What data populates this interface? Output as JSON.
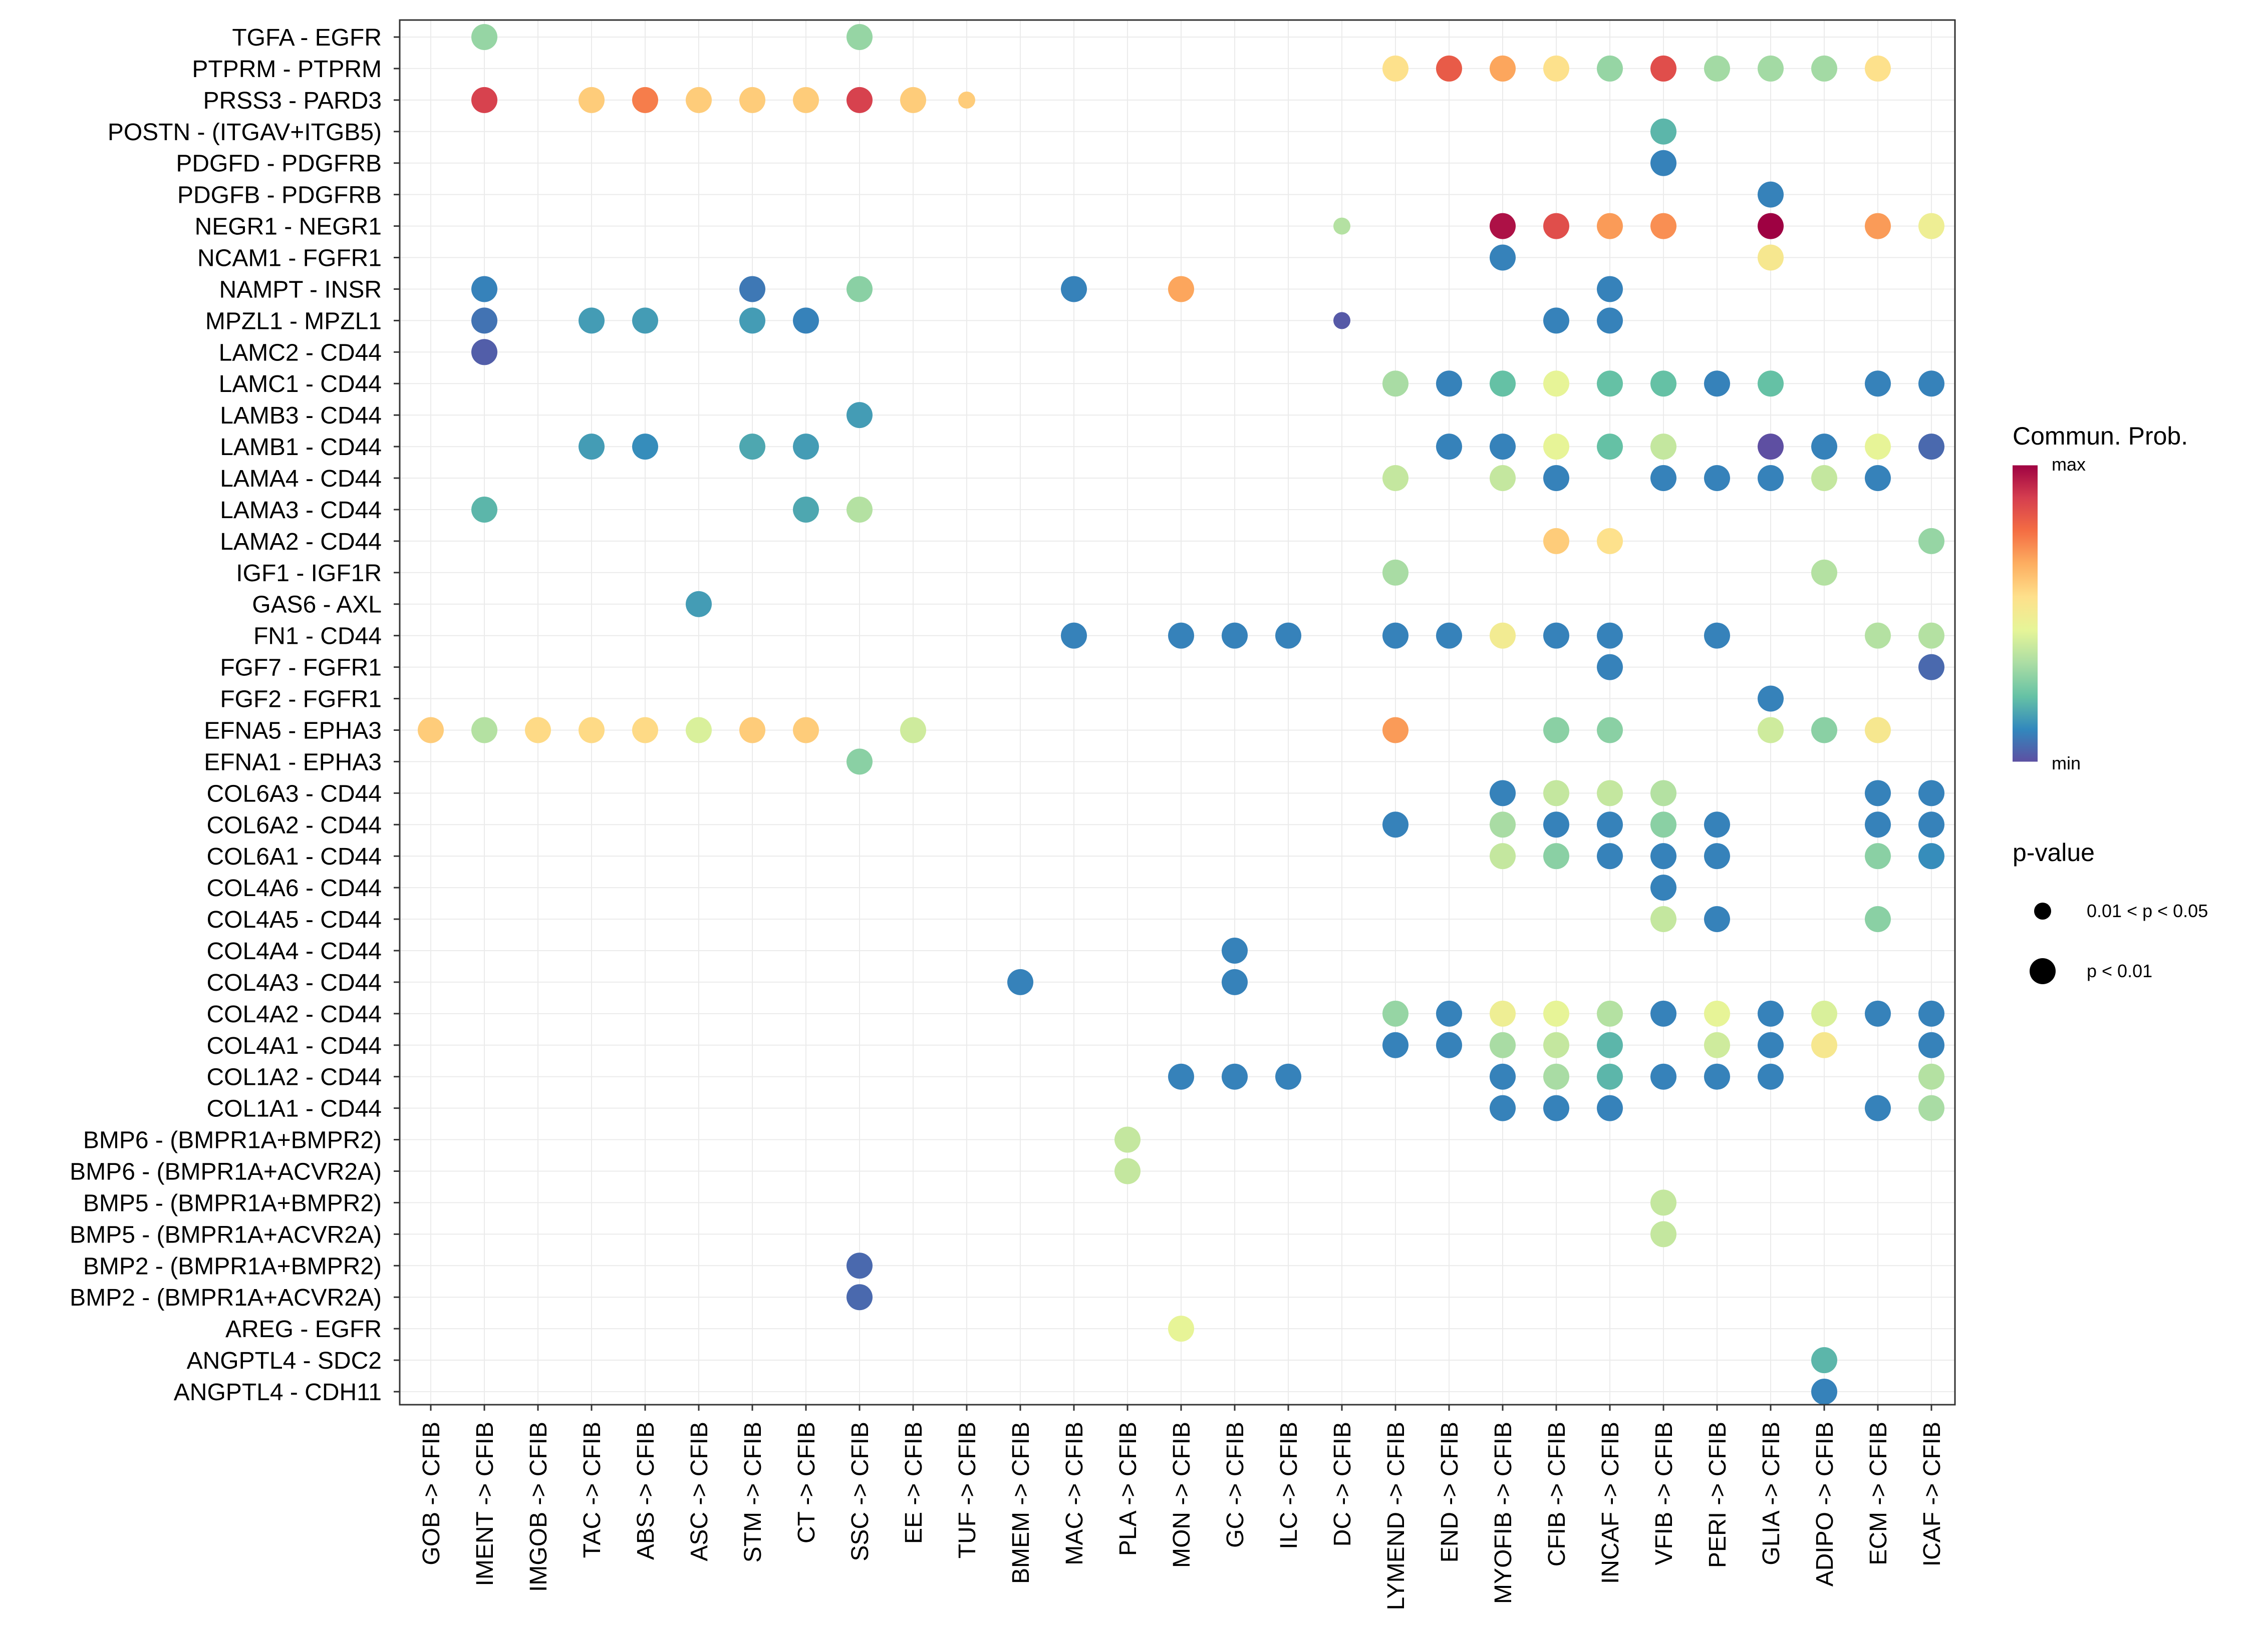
{
  "chart_data": {
    "type": "dot",
    "title": "",
    "xlabel": "",
    "ylabel": "",
    "x_categories": [
      "GOB -> CFIB",
      "IMENT -> CFIB",
      "IMGOB -> CFIB",
      "TAC -> CFIB",
      "ABS -> CFIB",
      "ASC -> CFIB",
      "STM -> CFIB",
      "CT -> CFIB",
      "SSC -> CFIB",
      "EE -> CFIB",
      "TUF -> CFIB",
      "BMEM -> CFIB",
      "MAC -> CFIB",
      "PLA -> CFIB",
      "MON -> CFIB",
      "GC -> CFIB",
      "ILC -> CFIB",
      "DC -> CFIB",
      "LYMEND -> CFIB",
      "END -> CFIB",
      "MYOFIB -> CFIB",
      "CFIB -> CFIB",
      "INCAF -> CFIB",
      "VFIB -> CFIB",
      "PERI -> CFIB",
      "GLIA -> CFIB",
      "ADIPO -> CFIB",
      "ECM -> CFIB",
      "ICAF -> CFIB"
    ],
    "y_categories": [
      "TGFA - EGFR",
      "PTPRM - PTPRM",
      "PRSS3 - PARD3",
      "POSTN - (ITGAV+ITGB5)",
      "PDGFD - PDGFRB",
      "PDGFB - PDGFRB",
      "NEGR1 - NEGR1",
      "NCAM1 - FGFR1",
      "NAMPT - INSR",
      "MPZL1 - MPZL1",
      "LAMC2 - CD44",
      "LAMC1 - CD44",
      "LAMB3 - CD44",
      "LAMB1 - CD44",
      "LAMA4 - CD44",
      "LAMA3 - CD44",
      "LAMA2 - CD44",
      "IGF1 - IGF1R",
      "GAS6 - AXL",
      "FN1 - CD44",
      "FGF7 - FGFR1",
      "FGF2 - FGFR1",
      "EFNA5 - EPHA3",
      "EFNA1 - EPHA3",
      "COL6A3 - CD44",
      "COL6A2 - CD44",
      "COL6A1 - CD44",
      "COL4A6 - CD44",
      "COL4A5 - CD44",
      "COL4A4 - CD44",
      "COL4A3 - CD44",
      "COL4A2 - CD44",
      "COL4A1 - CD44",
      "COL1A2 - CD44",
      "COL1A1 - CD44",
      "BMP6 - (BMPR1A+BMPR2)",
      "BMP6 - (BMPR1A+ACVR2A)",
      "BMP5 - (BMPR1A+BMPR2)",
      "BMP5 - (BMPR1A+ACVR2A)",
      "BMP2 - (BMPR1A+BMPR2)",
      "BMP2 - (BMPR1A+ACVR2A)",
      "AREG - EGFR",
      "ANGPTL4 - SDC2",
      "ANGPTL4 - CDH11"
    ],
    "value_scale": "Commun. Prob. (0 = min, 1 = max, estimated from color)",
    "size_scale": "p-value class: 1 = 0.01 < p < 0.05 (small dot), 2 = p < 0.01 (large dot)",
    "points": [
      [
        "TGFA - EGFR",
        "IMENT -> CFIB",
        0.3,
        2
      ],
      [
        "TGFA - EGFR",
        "SSC -> CFIB",
        0.3,
        2
      ],
      [
        "PTPRM - PTPRM",
        "LYMEND -> CFIB",
        0.55,
        2
      ],
      [
        "PTPRM - PTPRM",
        "END -> CFIB",
        0.82,
        2
      ],
      [
        "PTPRM - PTPRM",
        "MYOFIB -> CFIB",
        0.68,
        2
      ],
      [
        "PTPRM - PTPRM",
        "CFIB -> CFIB",
        0.55,
        2
      ],
      [
        "PTPRM - PTPRM",
        "INCAF -> CFIB",
        0.3,
        2
      ],
      [
        "PTPRM - PTPRM",
        "VFIB -> CFIB",
        0.85,
        2
      ],
      [
        "PTPRM - PTPRM",
        "PERI -> CFIB",
        0.32,
        2
      ],
      [
        "PTPRM - PTPRM",
        "GLIA -> CFIB",
        0.32,
        2
      ],
      [
        "PTPRM - PTPRM",
        "ADIPO -> CFIB",
        0.32,
        2
      ],
      [
        "PTPRM - PTPRM",
        "ECM -> CFIB",
        0.55,
        2
      ],
      [
        "PRSS3 - PARD3",
        "IMENT -> CFIB",
        0.88,
        2
      ],
      [
        "PRSS3 - PARD3",
        "TAC -> CFIB",
        0.6,
        2
      ],
      [
        "PRSS3 - PARD3",
        "ABS -> CFIB",
        0.75,
        2
      ],
      [
        "PRSS3 - PARD3",
        "ASC -> CFIB",
        0.6,
        2
      ],
      [
        "PRSS3 - PARD3",
        "STM -> CFIB",
        0.6,
        2
      ],
      [
        "PRSS3 - PARD3",
        "CT -> CFIB",
        0.6,
        2
      ],
      [
        "PRSS3 - PARD3",
        "SSC -> CFIB",
        0.88,
        2
      ],
      [
        "PRSS3 - PARD3",
        "EE -> CFIB",
        0.6,
        2
      ],
      [
        "PRSS3 - PARD3",
        "TUF -> CFIB",
        0.6,
        1
      ],
      [
        "POSTN - (ITGAV+ITGB5)",
        "VFIB -> CFIB",
        0.2,
        2
      ],
      [
        "PDGFD - PDGFRB",
        "VFIB -> CFIB",
        0.1,
        2
      ],
      [
        "PDGFB - PDGFRB",
        "GLIA -> CFIB",
        0.1,
        2
      ],
      [
        "NEGR1 - NEGR1",
        "DC -> CFIB",
        0.35,
        1
      ],
      [
        "NEGR1 - NEGR1",
        "MYOFIB -> CFIB",
        0.97,
        2
      ],
      [
        "NEGR1 - NEGR1",
        "CFIB -> CFIB",
        0.85,
        2
      ],
      [
        "NEGR1 - NEGR1",
        "INCAF -> CFIB",
        0.7,
        2
      ],
      [
        "NEGR1 - NEGR1",
        "VFIB -> CFIB",
        0.72,
        2
      ],
      [
        "NEGR1 - NEGR1",
        "GLIA -> CFIB",
        1.0,
        2
      ],
      [
        "NEGR1 - NEGR1",
        "ECM -> CFIB",
        0.7,
        2
      ],
      [
        "NEGR1 - NEGR1",
        "ICAF -> CFIB",
        0.48,
        2
      ],
      [
        "NCAM1 - FGFR1",
        "MYOFIB -> CFIB",
        0.1,
        2
      ],
      [
        "NCAM1 - FGFR1",
        "GLIA -> CFIB",
        0.52,
        2
      ],
      [
        "NAMPT - INSR",
        "IMENT -> CFIB",
        0.1,
        2
      ],
      [
        "NAMPT - INSR",
        "STM -> CFIB",
        0.08,
        2
      ],
      [
        "NAMPT - INSR",
        "SSC -> CFIB",
        0.28,
        2
      ],
      [
        "NAMPT - INSR",
        "MAC -> CFIB",
        0.1,
        2
      ],
      [
        "NAMPT - INSR",
        "MON -> CFIB",
        0.68,
        2
      ],
      [
        "NAMPT - INSR",
        "INCAF -> CFIB",
        0.1,
        2
      ],
      [
        "MPZL1 - MPZL1",
        "IMENT -> CFIB",
        0.07,
        2
      ],
      [
        "MPZL1 - MPZL1",
        "TAC -> CFIB",
        0.15,
        2
      ],
      [
        "MPZL1 - MPZL1",
        "ABS -> CFIB",
        0.15,
        2
      ],
      [
        "MPZL1 - MPZL1",
        "STM -> CFIB",
        0.15,
        2
      ],
      [
        "MPZL1 - MPZL1",
        "CT -> CFIB",
        0.1,
        2
      ],
      [
        "MPZL1 - MPZL1",
        "DC -> CFIB",
        0.02,
        1
      ],
      [
        "MPZL1 - MPZL1",
        "CFIB -> CFIB",
        0.1,
        2
      ],
      [
        "MPZL1 - MPZL1",
        "INCAF -> CFIB",
        0.1,
        2
      ],
      [
        "LAMC2 - CD44",
        "IMENT -> CFIB",
        0.03,
        2
      ],
      [
        "LAMC1 - CD44",
        "LYMEND -> CFIB",
        0.33,
        2
      ],
      [
        "LAMC1 - CD44",
        "END -> CFIB",
        0.1,
        2
      ],
      [
        "LAMC1 - CD44",
        "MYOFIB -> CFIB",
        0.22,
        2
      ],
      [
        "LAMC1 - CD44",
        "CFIB -> CFIB",
        0.45,
        2
      ],
      [
        "LAMC1 - CD44",
        "INCAF -> CFIB",
        0.22,
        2
      ],
      [
        "LAMC1 - CD44",
        "VFIB -> CFIB",
        0.22,
        2
      ],
      [
        "LAMC1 - CD44",
        "PERI -> CFIB",
        0.1,
        2
      ],
      [
        "LAMC1 - CD44",
        "GLIA -> CFIB",
        0.22,
        2
      ],
      [
        "LAMC1 - CD44",
        "ECM -> CFIB",
        0.1,
        2
      ],
      [
        "LAMC1 - CD44",
        "ICAF -> CFIB",
        0.1,
        2
      ],
      [
        "LAMB3 - CD44",
        "SSC -> CFIB",
        0.15,
        2
      ],
      [
        "LAMB1 - CD44",
        "TAC -> CFIB",
        0.15,
        2
      ],
      [
        "LAMB1 - CD44",
        "ABS -> CFIB",
        0.12,
        2
      ],
      [
        "LAMB1 - CD44",
        "STM -> CFIB",
        0.17,
        2
      ],
      [
        "LAMB1 - CD44",
        "CT -> CFIB",
        0.15,
        2
      ],
      [
        "LAMB1 - CD44",
        "END -> CFIB",
        0.1,
        2
      ],
      [
        "LAMB1 - CD44",
        "MYOFIB -> CFIB",
        0.1,
        2
      ],
      [
        "LAMB1 - CD44",
        "CFIB -> CFIB",
        0.45,
        2
      ],
      [
        "LAMB1 - CD44",
        "INCAF -> CFIB",
        0.22,
        2
      ],
      [
        "LAMB1 - CD44",
        "VFIB -> CFIB",
        0.38,
        2
      ],
      [
        "LAMB1 - CD44",
        "GLIA -> CFIB",
        0.0,
        2
      ],
      [
        "LAMB1 - CD44",
        "ADIPO -> CFIB",
        0.1,
        2
      ],
      [
        "LAMB1 - CD44",
        "ECM -> CFIB",
        0.45,
        2
      ],
      [
        "LAMB1 - CD44",
        "ICAF -> CFIB",
        0.05,
        2
      ],
      [
        "LAMA4 - CD44",
        "LYMEND -> CFIB",
        0.38,
        2
      ],
      [
        "LAMA4 - CD44",
        "MYOFIB -> CFIB",
        0.38,
        2
      ],
      [
        "LAMA4 - CD44",
        "CFIB -> CFIB",
        0.1,
        2
      ],
      [
        "LAMA4 - CD44",
        "VFIB -> CFIB",
        0.1,
        2
      ],
      [
        "LAMA4 - CD44",
        "PERI -> CFIB",
        0.1,
        2
      ],
      [
        "LAMA4 - CD44",
        "GLIA -> CFIB",
        0.1,
        2
      ],
      [
        "LAMA4 - CD44",
        "ADIPO -> CFIB",
        0.38,
        2
      ],
      [
        "LAMA4 - CD44",
        "ECM -> CFIB",
        0.1,
        2
      ],
      [
        "LAMA3 - CD44",
        "IMENT -> CFIB",
        0.2,
        2
      ],
      [
        "LAMA3 - CD44",
        "CT -> CFIB",
        0.17,
        2
      ],
      [
        "LAMA3 - CD44",
        "SSC -> CFIB",
        0.35,
        2
      ],
      [
        "LAMA2 - CD44",
        "CFIB -> CFIB",
        0.6,
        2
      ],
      [
        "LAMA2 - CD44",
        "INCAF -> CFIB",
        0.55,
        2
      ],
      [
        "LAMA2 - CD44",
        "ICAF -> CFIB",
        0.3,
        2
      ],
      [
        "IGF1 - IGF1R",
        "LYMEND -> CFIB",
        0.33,
        2
      ],
      [
        "IGF1 - IGF1R",
        "ADIPO -> CFIB",
        0.35,
        2
      ],
      [
        "GAS6 - AXL",
        "ASC -> CFIB",
        0.15,
        2
      ],
      [
        "FN1 - CD44",
        "MAC -> CFIB",
        0.1,
        2
      ],
      [
        "FN1 - CD44",
        "MON -> CFIB",
        0.1,
        2
      ],
      [
        "FN1 - CD44",
        "GC -> CFIB",
        0.1,
        2
      ],
      [
        "FN1 - CD44",
        "ILC -> CFIB",
        0.1,
        2
      ],
      [
        "FN1 - CD44",
        "LYMEND -> CFIB",
        0.1,
        2
      ],
      [
        "FN1 - CD44",
        "END -> CFIB",
        0.1,
        2
      ],
      [
        "FN1 - CD44",
        "MYOFIB -> CFIB",
        0.5,
        2
      ],
      [
        "FN1 - CD44",
        "CFIB -> CFIB",
        0.1,
        2
      ],
      [
        "FN1 - CD44",
        "INCAF -> CFIB",
        0.1,
        2
      ],
      [
        "FN1 - CD44",
        "PERI -> CFIB",
        0.1,
        2
      ],
      [
        "FN1 - CD44",
        "ECM -> CFIB",
        0.35,
        2
      ],
      [
        "FN1 - CD44",
        "ICAF -> CFIB",
        0.35,
        2
      ],
      [
        "FGF7 - FGFR1",
        "INCAF -> CFIB",
        0.1,
        2
      ],
      [
        "FGF7 - FGFR1",
        "ICAF -> CFIB",
        0.05,
        2
      ],
      [
        "FGF2 - FGFR1",
        "GLIA -> CFIB",
        0.1,
        2
      ],
      [
        "EFNA5 - EPHA3",
        "GOB -> CFIB",
        0.6,
        2
      ],
      [
        "EFNA5 - EPHA3",
        "IMENT -> CFIB",
        0.35,
        2
      ],
      [
        "EFNA5 - EPHA3",
        "IMGOB -> CFIB",
        0.57,
        2
      ],
      [
        "EFNA5 - EPHA3",
        "TAC -> CFIB",
        0.57,
        2
      ],
      [
        "EFNA5 - EPHA3",
        "ABS -> CFIB",
        0.57,
        2
      ],
      [
        "EFNA5 - EPHA3",
        "ASC -> CFIB",
        0.42,
        2
      ],
      [
        "EFNA5 - EPHA3",
        "STM -> CFIB",
        0.6,
        2
      ],
      [
        "EFNA5 - EPHA3",
        "CT -> CFIB",
        0.6,
        2
      ],
      [
        "EFNA5 - EPHA3",
        "EE -> CFIB",
        0.4,
        2
      ],
      [
        "EFNA5 - EPHA3",
        "LYMEND -> CFIB",
        0.7,
        2
      ],
      [
        "EFNA5 - EPHA3",
        "CFIB -> CFIB",
        0.28,
        2
      ],
      [
        "EFNA5 - EPHA3",
        "INCAF -> CFIB",
        0.28,
        2
      ],
      [
        "EFNA5 - EPHA3",
        "GLIA -> CFIB",
        0.4,
        2
      ],
      [
        "EFNA5 - EPHA3",
        "ADIPO -> CFIB",
        0.28,
        2
      ],
      [
        "EFNA5 - EPHA3",
        "ECM -> CFIB",
        0.52,
        2
      ],
      [
        "EFNA1 - EPHA3",
        "SSC -> CFIB",
        0.28,
        2
      ],
      [
        "COL6A3 - CD44",
        "MYOFIB -> CFIB",
        0.1,
        2
      ],
      [
        "COL6A3 - CD44",
        "CFIB -> CFIB",
        0.38,
        2
      ],
      [
        "COL6A3 - CD44",
        "INCAF -> CFIB",
        0.38,
        2
      ],
      [
        "COL6A3 - CD44",
        "VFIB -> CFIB",
        0.35,
        2
      ],
      [
        "COL6A3 - CD44",
        "ECM -> CFIB",
        0.1,
        2
      ],
      [
        "COL6A3 - CD44",
        "ICAF -> CFIB",
        0.1,
        2
      ],
      [
        "COL6A2 - CD44",
        "LYMEND -> CFIB",
        0.1,
        2
      ],
      [
        "COL6A2 - CD44",
        "MYOFIB -> CFIB",
        0.33,
        2
      ],
      [
        "COL6A2 - CD44",
        "CFIB -> CFIB",
        0.1,
        2
      ],
      [
        "COL6A2 - CD44",
        "INCAF -> CFIB",
        0.1,
        2
      ],
      [
        "COL6A2 - CD44",
        "VFIB -> CFIB",
        0.28,
        2
      ],
      [
        "COL6A2 - CD44",
        "PERI -> CFIB",
        0.1,
        2
      ],
      [
        "COL6A2 - CD44",
        "ECM -> CFIB",
        0.1,
        2
      ],
      [
        "COL6A2 - CD44",
        "ICAF -> CFIB",
        0.1,
        2
      ],
      [
        "COL6A1 - CD44",
        "MYOFIB -> CFIB",
        0.38,
        2
      ],
      [
        "COL6A1 - CD44",
        "CFIB -> CFIB",
        0.28,
        2
      ],
      [
        "COL6A1 - CD44",
        "INCAF -> CFIB",
        0.1,
        2
      ],
      [
        "COL6A1 - CD44",
        "VFIB -> CFIB",
        0.1,
        2
      ],
      [
        "COL6A1 - CD44",
        "PERI -> CFIB",
        0.1,
        2
      ],
      [
        "COL6A1 - CD44",
        "ECM -> CFIB",
        0.28,
        2
      ],
      [
        "COL6A1 - CD44",
        "ICAF -> CFIB",
        0.12,
        2
      ],
      [
        "COL4A6 - CD44",
        "VFIB -> CFIB",
        0.1,
        2
      ],
      [
        "COL4A5 - CD44",
        "VFIB -> CFIB",
        0.38,
        2
      ],
      [
        "COL4A5 - CD44",
        "PERI -> CFIB",
        0.1,
        2
      ],
      [
        "COL4A5 - CD44",
        "ECM -> CFIB",
        0.28,
        2
      ],
      [
        "COL4A4 - CD44",
        "GC -> CFIB",
        0.1,
        2
      ],
      [
        "COL4A3 - CD44",
        "BMEM -> CFIB",
        0.1,
        2
      ],
      [
        "COL4A3 - CD44",
        "GC -> CFIB",
        0.1,
        2
      ],
      [
        "COL4A2 - CD44",
        "LYMEND -> CFIB",
        0.3,
        2
      ],
      [
        "COL4A2 - CD44",
        "END -> CFIB",
        0.1,
        2
      ],
      [
        "COL4A2 - CD44",
        "MYOFIB -> CFIB",
        0.48,
        2
      ],
      [
        "COL4A2 - CD44",
        "CFIB -> CFIB",
        0.45,
        2
      ],
      [
        "COL4A2 - CD44",
        "INCAF -> CFIB",
        0.35,
        2
      ],
      [
        "COL4A2 - CD44",
        "VFIB -> CFIB",
        0.1,
        2
      ],
      [
        "COL4A2 - CD44",
        "PERI -> CFIB",
        0.45,
        2
      ],
      [
        "COL4A2 - CD44",
        "GLIA -> CFIB",
        0.1,
        2
      ],
      [
        "COL4A2 - CD44",
        "ADIPO -> CFIB",
        0.42,
        2
      ],
      [
        "COL4A2 - CD44",
        "ECM -> CFIB",
        0.1,
        2
      ],
      [
        "COL4A2 - CD44",
        "ICAF -> CFIB",
        0.1,
        2
      ],
      [
        "COL4A1 - CD44",
        "LYMEND -> CFIB",
        0.1,
        2
      ],
      [
        "COL4A1 - CD44",
        "END -> CFIB",
        0.1,
        2
      ],
      [
        "COL4A1 - CD44",
        "MYOFIB -> CFIB",
        0.33,
        2
      ],
      [
        "COL4A1 - CD44",
        "CFIB -> CFIB",
        0.38,
        2
      ],
      [
        "COL4A1 - CD44",
        "INCAF -> CFIB",
        0.2,
        2
      ],
      [
        "COL4A1 - CD44",
        "PERI -> CFIB",
        0.4,
        2
      ],
      [
        "COL4A1 - CD44",
        "GLIA -> CFIB",
        0.1,
        2
      ],
      [
        "COL4A1 - CD44",
        "ADIPO -> CFIB",
        0.52,
        2
      ],
      [
        "COL4A1 - CD44",
        "ICAF -> CFIB",
        0.1,
        2
      ],
      [
        "COL1A2 - CD44",
        "MON -> CFIB",
        0.1,
        2
      ],
      [
        "COL1A2 - CD44",
        "GC -> CFIB",
        0.1,
        2
      ],
      [
        "COL1A2 - CD44",
        "ILC -> CFIB",
        0.1,
        2
      ],
      [
        "COL1A2 - CD44",
        "MYOFIB -> CFIB",
        0.1,
        2
      ],
      [
        "COL1A2 - CD44",
        "CFIB -> CFIB",
        0.33,
        2
      ],
      [
        "COL1A2 - CD44",
        "INCAF -> CFIB",
        0.2,
        2
      ],
      [
        "COL1A2 - CD44",
        "VFIB -> CFIB",
        0.1,
        2
      ],
      [
        "COL1A2 - CD44",
        "PERI -> CFIB",
        0.1,
        2
      ],
      [
        "COL1A2 - CD44",
        "GLIA -> CFIB",
        0.1,
        2
      ],
      [
        "COL1A2 - CD44",
        "ICAF -> CFIB",
        0.35,
        2
      ],
      [
        "COL1A1 - CD44",
        "MYOFIB -> CFIB",
        0.1,
        2
      ],
      [
        "COL1A1 - CD44",
        "CFIB -> CFIB",
        0.1,
        2
      ],
      [
        "COL1A1 - CD44",
        "INCAF -> CFIB",
        0.1,
        2
      ],
      [
        "COL1A1 - CD44",
        "ECM -> CFIB",
        0.1,
        2
      ],
      [
        "COL1A1 - CD44",
        "ICAF -> CFIB",
        0.33,
        2
      ],
      [
        "BMP6 - (BMPR1A+BMPR2)",
        "PLA -> CFIB",
        0.38,
        2
      ],
      [
        "BMP6 - (BMPR1A+ACVR2A)",
        "PLA -> CFIB",
        0.38,
        2
      ],
      [
        "BMP5 - (BMPR1A+BMPR2)",
        "VFIB -> CFIB",
        0.38,
        2
      ],
      [
        "BMP5 - (BMPR1A+ACVR2A)",
        "VFIB -> CFIB",
        0.38,
        2
      ],
      [
        "BMP2 - (BMPR1A+BMPR2)",
        "SSC -> CFIB",
        0.05,
        2
      ],
      [
        "BMP2 - (BMPR1A+ACVR2A)",
        "SSC -> CFIB",
        0.05,
        2
      ],
      [
        "AREG - EGFR",
        "MON -> CFIB",
        0.45,
        2
      ],
      [
        "ANGPTL4 - SDC2",
        "ADIPO -> CFIB",
        0.2,
        2
      ],
      [
        "ANGPTL4 - CDH11",
        "ADIPO -> CFIB",
        0.1,
        2
      ]
    ],
    "legend": {
      "color_title": "Commun. Prob.",
      "color_max_label": "max",
      "color_min_label": "min",
      "size_title": "p-value",
      "size_entries": [
        "0.01 < p < 0.05",
        "p < 0.01"
      ]
    },
    "colors": [
      "#5E4FA2",
      "#3288BD",
      "#66C2A5",
      "#ABDDA4",
      "#E6F598",
      "#FEE08B",
      "#FDAE61",
      "#F46D43",
      "#D53E4F",
      "#9E0142"
    ],
    "grid": true
  }
}
